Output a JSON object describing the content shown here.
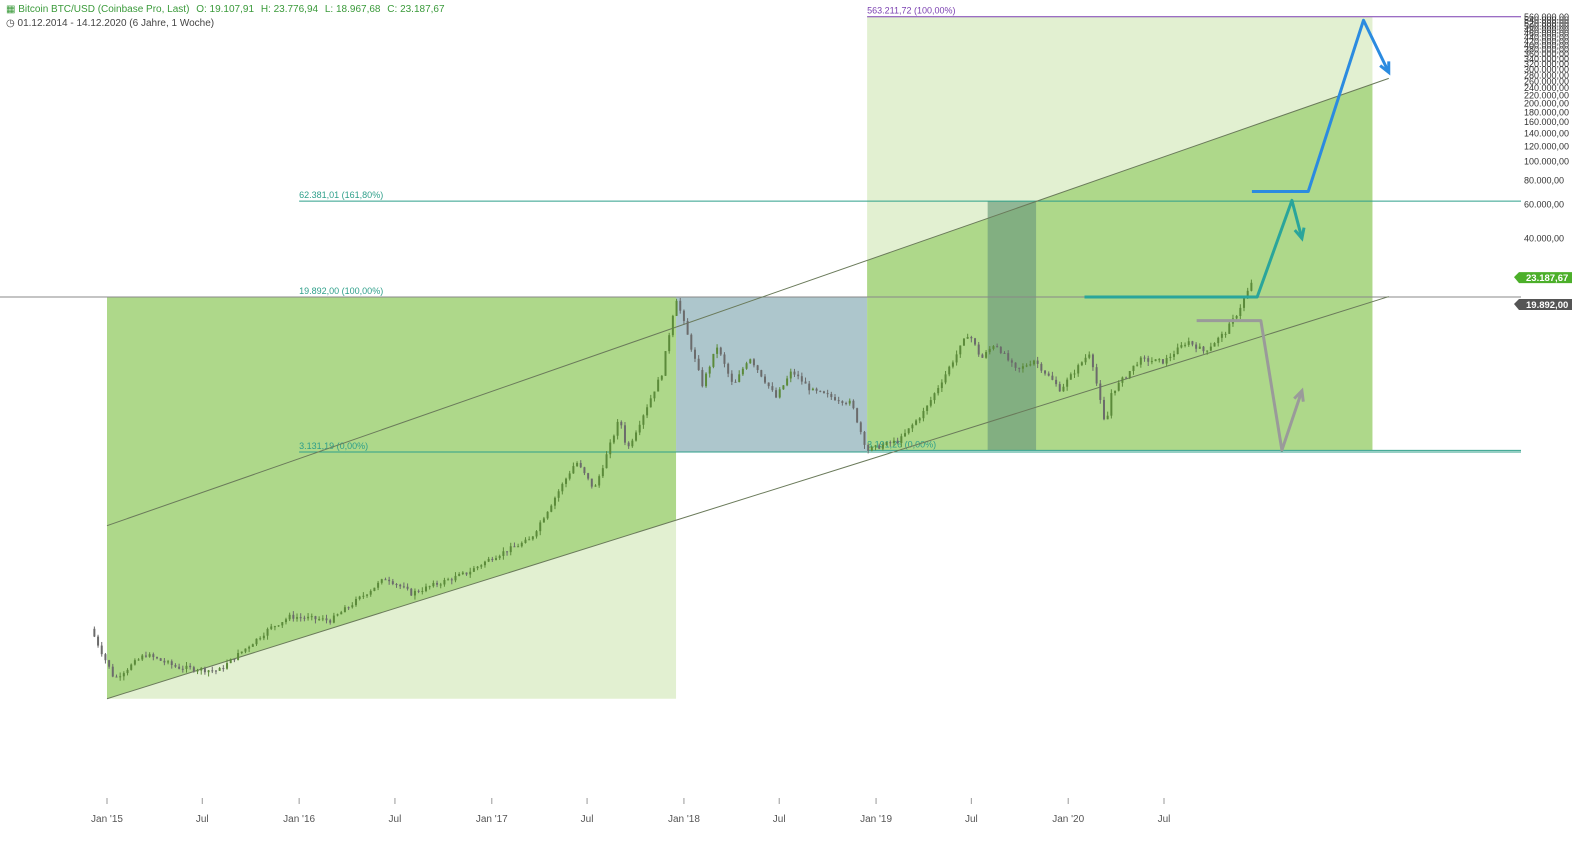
{
  "header": {
    "instrument": "Bitcoin BTC/USD (Coinbase Pro, Last)",
    "open_label": "O:",
    "open": "19.107,91",
    "high_label": "H:",
    "high": "23.776,94",
    "low_label": "L:",
    "low": "18.967,68",
    "close_label": "C:",
    "close": "23.187,67",
    "range": "01.12.2014 - 14.12.2020",
    "span": "(6 Jahre, 1 Woche)"
  },
  "colors": {
    "zone_dark": "#8cc85a",
    "zone_light": "#d2e8b8",
    "zone_blue": "#8aaeb6",
    "zone_teal": "#6f9e7e",
    "fib_line": "#2e9f8a",
    "fib_purple": "#7a3fb0",
    "arrow_teal": "#2aa59b",
    "arrow_blue": "#2b8be0",
    "arrow_gray": "#9a9a9a",
    "badge_green": "#4caf2a",
    "badge_dark": "#555555",
    "candle_up": "#5b8a3a",
    "candle_down": "#6b6b6b"
  },
  "chart_data": {
    "type": "candlestick",
    "x_scale": "time",
    "y_scale": "log",
    "x_tick_labels": [
      "Jan '15",
      "Jul",
      "Jan '16",
      "Jul",
      "Jan '17",
      "Jul",
      "Jan '18",
      "Jul",
      "Jan '19",
      "Jul",
      "Jan '20",
      "Jul"
    ],
    "x_tick_dates": [
      "2015-01-01",
      "2015-07-01",
      "2016-01-01",
      "2016-07-01",
      "2017-01-01",
      "2017-07-01",
      "2018-01-01",
      "2018-07-01",
      "2019-01-01",
      "2019-07-01",
      "2020-01-01",
      "2020-07-01"
    ],
    "y_tick_labels": [
      "40.000,00",
      "60.000,00",
      "80.000,00",
      "100.000,00",
      "120.000,00",
      "140.000,00",
      "160.000,00",
      "180.000,00",
      "200.000,00",
      "220.000,00",
      "240.000,00",
      "260.000,00",
      "280.000,00",
      "300.000,00",
      "320.000,00",
      "340.000,00",
      "360.000,00",
      "380.000,00",
      "400.000,00",
      "420.000,00",
      "440.000,00",
      "460.000,00",
      "480.000,00",
      "500.000,00",
      "520.000,00",
      "540.000,00",
      "560.000,00"
    ],
    "y_tick_values": [
      40000,
      60000,
      80000,
      100000,
      120000,
      140000,
      160000,
      180000,
      200000,
      220000,
      240000,
      260000,
      280000,
      300000,
      320000,
      340000,
      360000,
      380000,
      400000,
      420000,
      440000,
      460000,
      480000,
      500000,
      520000,
      540000,
      560000
    ],
    "price_path": [
      {
        "d": "2014-12-01",
        "v": 380
      },
      {
        "d": "2015-01-15",
        "v": 210
      },
      {
        "d": "2015-03-15",
        "v": 280
      },
      {
        "d": "2015-05-15",
        "v": 240
      },
      {
        "d": "2015-08-01",
        "v": 230
      },
      {
        "d": "2015-11-05",
        "v": 380
      },
      {
        "d": "2015-12-15",
        "v": 440
      },
      {
        "d": "2016-03-01",
        "v": 420
      },
      {
        "d": "2016-06-15",
        "v": 700
      },
      {
        "d": "2016-08-01",
        "v": 580
      },
      {
        "d": "2016-11-15",
        "v": 740
      },
      {
        "d": "2017-01-05",
        "v": 900
      },
      {
        "d": "2017-03-15",
        "v": 1100
      },
      {
        "d": "2017-06-10",
        "v": 2800
      },
      {
        "d": "2017-07-15",
        "v": 2000
      },
      {
        "d": "2017-09-01",
        "v": 4700
      },
      {
        "d": "2017-09-15",
        "v": 3200
      },
      {
        "d": "2017-11-20",
        "v": 8000
      },
      {
        "d": "2017-12-17",
        "v": 19892
      },
      {
        "d": "2018-02-05",
        "v": 7000
      },
      {
        "d": "2018-03-05",
        "v": 11000
      },
      {
        "d": "2018-04-05",
        "v": 6800
      },
      {
        "d": "2018-05-05",
        "v": 9800
      },
      {
        "d": "2018-06-25",
        "v": 6000
      },
      {
        "d": "2018-07-25",
        "v": 8200
      },
      {
        "d": "2018-09-01",
        "v": 6500
      },
      {
        "d": "2018-11-15",
        "v": 5600
      },
      {
        "d": "2018-12-15",
        "v": 3200
      },
      {
        "d": "2019-02-15",
        "v": 3600
      },
      {
        "d": "2019-04-05",
        "v": 5200
      },
      {
        "d": "2019-06-26",
        "v": 13000
      },
      {
        "d": "2019-07-20",
        "v": 9500
      },
      {
        "d": "2019-08-15",
        "v": 11500
      },
      {
        "d": "2019-09-25",
        "v": 8200
      },
      {
        "d": "2019-10-28",
        "v": 9400
      },
      {
        "d": "2019-12-17",
        "v": 6600
      },
      {
        "d": "2020-02-12",
        "v": 10400
      },
      {
        "d": "2020-03-13",
        "v": 4000
      },
      {
        "d": "2020-03-20",
        "v": 6200
      },
      {
        "d": "2020-05-15",
        "v": 9400
      },
      {
        "d": "2020-07-01",
        "v": 9200
      },
      {
        "d": "2020-08-15",
        "v": 11800
      },
      {
        "d": "2020-09-15",
        "v": 10400
      },
      {
        "d": "2020-10-25",
        "v": 13000
      },
      {
        "d": "2020-11-15",
        "v": 16000
      },
      {
        "d": "2020-12-14",
        "v": 23188
      }
    ],
    "fib_levels": [
      {
        "label": "3.131,19 (0,00%)",
        "value": 3131.19,
        "from": "2016-01-01"
      },
      {
        "label": "19.892,00 (100,00%)",
        "value": 19892,
        "from": "2016-01-01"
      },
      {
        "label": "62.381,01 (161,80%)",
        "value": 62381.01,
        "from": "2016-01-01"
      },
      {
        "label": "563.211,72 (100,00%)",
        "value": 563211.72,
        "from": "2018-12-15"
      },
      {
        "label": "3.191,26 (0,00%)",
        "value": 3191.26,
        "from": "2018-12-15"
      }
    ],
    "channel": {
      "upper": [
        {
          "d": "2015-01-01",
          "v": 1300
        },
        {
          "d": "2021-09-01",
          "v": 270000
        }
      ],
      "lower": [
        {
          "d": "2015-01-01",
          "v": 165
        },
        {
          "d": "2021-09-01",
          "v": 20000
        }
      ]
    },
    "zones": [
      {
        "from": "2015-01-01",
        "to": "2017-12-17",
        "top": 19892,
        "bottom": 165,
        "tone": "light"
      },
      {
        "from": "2015-01-01",
        "to": "2017-12-17",
        "top": 19892,
        "bottom": "channel",
        "tone": "dark"
      },
      {
        "from": "2017-12-17",
        "to": "2018-12-15",
        "top": 19892,
        "bottom": 3131.19,
        "tone": "blue"
      },
      {
        "from": "2018-12-15",
        "to": "2021-08-01",
        "top": 563211.72,
        "bottom": 3191.26,
        "tone": "light"
      },
      {
        "from": "2018-12-15",
        "to": "2021-08-01",
        "top": "channel",
        "bottom": 3191.26,
        "tone": "dark"
      },
      {
        "from": "2019-08-01",
        "to": "2019-11-01",
        "top": 62381.01,
        "bottom": 3191.26,
        "tone": "teal"
      }
    ],
    "projections": [
      {
        "color": "arrow_teal",
        "path": [
          {
            "d": "2020-02-01",
            "v": 19892
          },
          {
            "d": "2020-12-25",
            "v": 19892
          },
          {
            "d": "2021-03-01",
            "v": 63000
          },
          {
            "d": "2021-03-20",
            "v": 40000
          }
        ]
      },
      {
        "color": "arrow_blue",
        "path": [
          {
            "d": "2020-12-15",
            "v": 70000
          },
          {
            "d": "2021-04-01",
            "v": 70000
          },
          {
            "d": "2021-07-15",
            "v": 540000
          },
          {
            "d": "2021-09-01",
            "v": 290000
          }
        ]
      },
      {
        "color": "arrow_gray",
        "path": [
          {
            "d": "2020-09-01",
            "v": 15000
          },
          {
            "d": "2021-01-01",
            "v": 15000
          },
          {
            "d": "2021-02-10",
            "v": 3200
          },
          {
            "d": "2021-03-20",
            "v": 6500
          }
        ]
      },
      {
        "color": "arrow_teal",
        "path": [
          {
            "d": "2020-02-01",
            "v": 19892
          },
          {
            "d": "2020-12-25",
            "v": 19892
          }
        ]
      }
    ],
    "price_badges": [
      {
        "label": "23.187,67",
        "value": 23187.67,
        "tone": "badge_green"
      },
      {
        "label": "19.892,00",
        "value": 19892,
        "tone": "badge_dark"
      }
    ],
    "grid": false
  }
}
